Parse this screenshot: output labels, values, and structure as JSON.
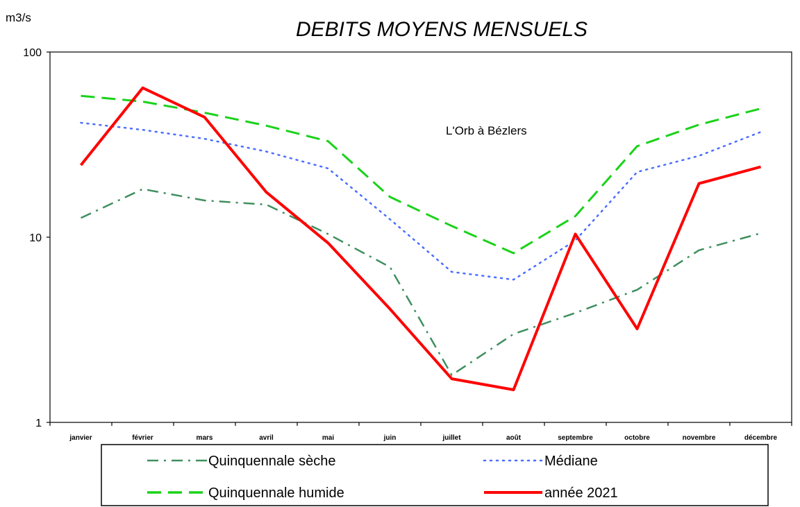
{
  "chart_data": {
    "type": "line",
    "title": "DEBITS MOYENS MENSUELS",
    "ylabel": "m3/s",
    "xlabel": "",
    "yscale": "log",
    "ylim": [
      1,
      100
    ],
    "yticks": [
      {
        "value": 1,
        "label": "1"
      },
      {
        "value": 10,
        "label": "10"
      },
      {
        "value": 100,
        "label": "100"
      }
    ],
    "grid": false,
    "legend_position": "bottom",
    "annotation": "L'Orb à Bézlers",
    "categories": [
      "janvier",
      "février",
      "mars",
      "avril",
      "mai",
      "juin",
      "juillet",
      "août",
      "septembre",
      "octobre",
      "novembre",
      "décembre"
    ],
    "series": [
      {
        "name": "Quinquennale sèche",
        "color": "#3f8f5f",
        "dash": "dashdot",
        "values": [
          12.7,
          18.2,
          15.8,
          15.0,
          10.4,
          6.9,
          1.8,
          3.0,
          3.9,
          5.2,
          8.5,
          10.5
        ]
      },
      {
        "name": "Médiane",
        "color": "#4a6cff",
        "dash": "dotted",
        "values": [
          41.5,
          38.0,
          34.0,
          29.0,
          23.5,
          12.5,
          6.5,
          5.9,
          9.6,
          22.5,
          27.5,
          37.0
        ]
      },
      {
        "name": "Quinquennale humide",
        "color": "#1ad21a",
        "dash": "dashed",
        "values": [
          58.0,
          54.0,
          47.0,
          40.0,
          33.0,
          16.5,
          11.5,
          8.2,
          13.0,
          31.0,
          40.5,
          49.5
        ]
      },
      {
        "name": "année 2021",
        "color": "#ff0000",
        "dash": "solid",
        "values": [
          24.5,
          64.0,
          44.5,
          17.5,
          9.3,
          4.1,
          1.72,
          1.5,
          10.4,
          3.2,
          19.5,
          24.0
        ]
      }
    ]
  }
}
